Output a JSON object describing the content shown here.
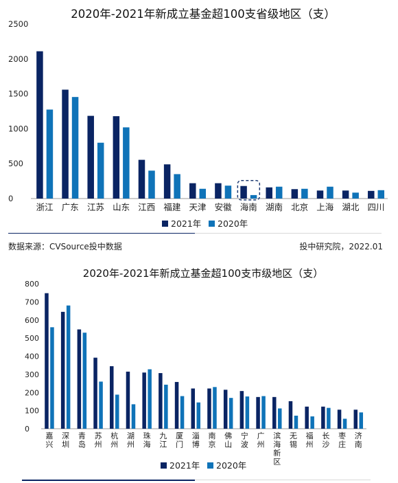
{
  "colors": {
    "y2021": "#0a2463",
    "y2020": "#0f73b8",
    "axis": "#999999",
    "highlight": "#1f3b73",
    "rule": "#0a2463"
  },
  "source_text": "数据来源：CVSource投中数据",
  "credit_text": "投中研究院，2022.01",
  "chart_data": [
    {
      "type": "bar",
      "title": "2020年-2021年新成立基金超100支省级地区（支）",
      "categories": [
        "浙江",
        "广东",
        "江苏",
        "山东",
        "江西",
        "福建",
        "天津",
        "安徽",
        "海南",
        "湖南",
        "北京",
        "上海",
        "湖北",
        "四川"
      ],
      "series": [
        {
          "name": "2021年",
          "values": [
            2110,
            1560,
            1185,
            1180,
            555,
            490,
            220,
            220,
            180,
            160,
            135,
            115,
            115,
            110
          ]
        },
        {
          "name": "2020年",
          "values": [
            1275,
            1455,
            800,
            1020,
            400,
            350,
            140,
            185,
            50,
            170,
            140,
            170,
            85,
            120
          ]
        }
      ],
      "ylim": [
        0,
        2500
      ],
      "yticks": [
        0,
        500,
        1000,
        1500,
        2000,
        2500
      ],
      "highlight_category": "海南",
      "legend": "bottom-center"
    },
    {
      "type": "bar",
      "title": "2020年-2021年新成立基金超100支市级地区（支）",
      "categories": [
        "嘉兴",
        "深圳",
        "青岛",
        "苏州",
        "杭州",
        "湖州",
        "珠海",
        "九江",
        "厦门",
        "淄博",
        "南京",
        "佛山",
        "宁波",
        "广州",
        "滨海新区",
        "无锡",
        "福州",
        "长沙",
        "枣庄",
        "济南"
      ],
      "series": [
        {
          "name": "2021年",
          "values": [
            748,
            645,
            548,
            392,
            345,
            315,
            310,
            307,
            258,
            222,
            222,
            215,
            208,
            175,
            175,
            152,
            122,
            122,
            105,
            105
          ]
        },
        {
          "name": "2020年",
          "values": [
            560,
            680,
            530,
            260,
            188,
            135,
            328,
            243,
            180,
            145,
            230,
            170,
            178,
            180,
            112,
            72,
            68,
            115,
            55,
            90
          ]
        }
      ],
      "ylim": [
        0,
        800
      ],
      "yticks": [
        0,
        100,
        200,
        300,
        400,
        500,
        600,
        700,
        800
      ],
      "legend": "bottom-center"
    }
  ]
}
